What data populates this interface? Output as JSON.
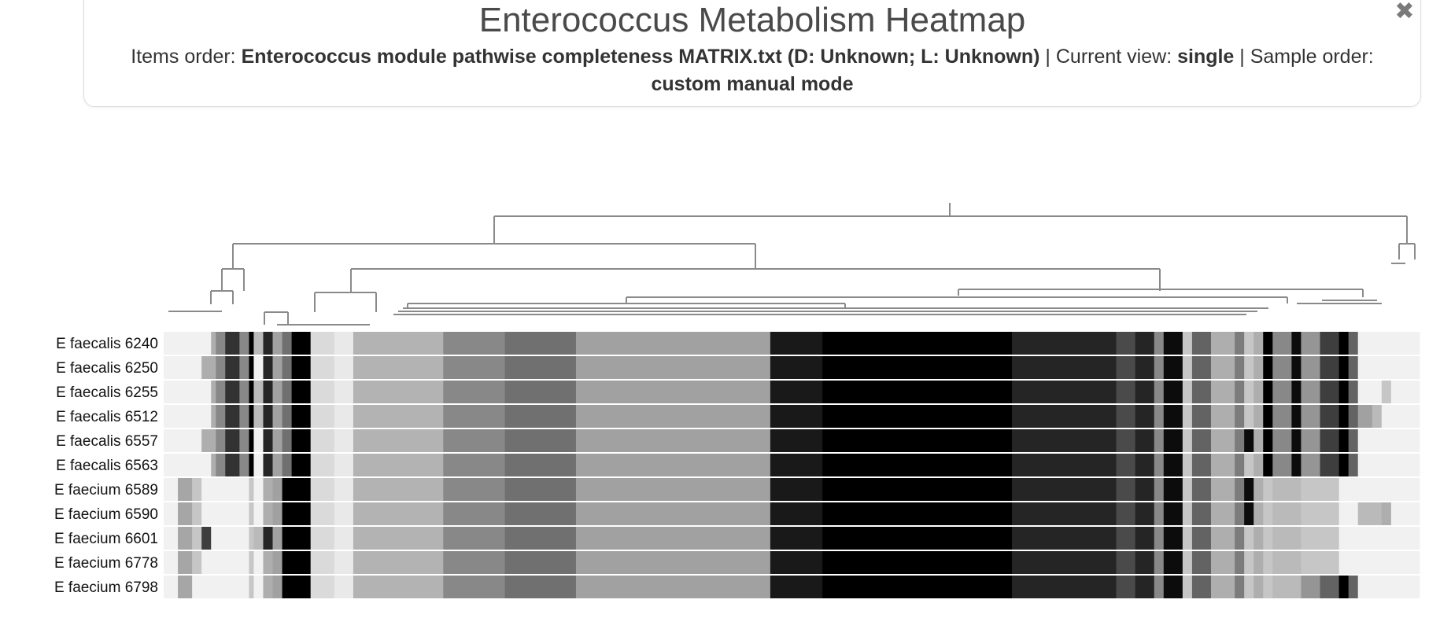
{
  "panel": {
    "title": "Enterococcus Metabolism Heatmap",
    "items_order_label": "Items order: ",
    "items_order_value": "Enterococcus module pathwise completeness MATRIX.txt (D: Unknown; L: Unknown)",
    "sep1": " | Current view: ",
    "current_view_value": "single",
    "sep2": " | Sample order: ",
    "sample_order_value": "custom manual mode",
    "close_icon": "close-icon",
    "close_glyph": "✖"
  },
  "chart_data": {
    "type": "heatmap",
    "title": "Enterococcus Metabolism Heatmap",
    "value_range": [
      0,
      1
    ],
    "color_scale": [
      "#f8f8f8",
      "#000000"
    ],
    "grid": false,
    "dendrogram": "top (items)",
    "samples": [
      "E faecalis 6240",
      "E faecalis 6250",
      "E faecalis 6255",
      "E faecalis 6512",
      "E faecalis 6557",
      "E faecalis 6563",
      "E faecium 6589",
      "E faecium 6590",
      "E faecium 6601",
      "E faecium 6778",
      "E faecium 6798"
    ],
    "column_segments": [
      {
        "count": 15,
        "values": [
          0.03,
          0.03,
          0.03,
          0.03,
          0.03,
          0.03,
          0.03,
          0.03,
          0.03,
          0.03,
          0.03
        ]
      },
      {
        "count": 15,
        "values": [
          0.03,
          0.03,
          0.03,
          0.03,
          0.03,
          0.03,
          0.33,
          0.33,
          0.33,
          0.33,
          0.33
        ]
      },
      {
        "count": 10,
        "values": [
          0.03,
          0.03,
          0.03,
          0.03,
          0.03,
          0.03,
          0.2,
          0.2,
          0.2,
          0.2,
          0.03
        ]
      },
      {
        "count": 10,
        "values": [
          0.03,
          0.3,
          0.03,
          0.03,
          0.3,
          0.03,
          0.03,
          0.03,
          0.75,
          0.03,
          0.03
        ]
      },
      {
        "count": 5,
        "values": [
          0.3,
          0.3,
          0.3,
          0.3,
          0.3,
          0.3,
          0.03,
          0.03,
          0.03,
          0.03,
          0.03
        ]
      },
      {
        "count": 10,
        "values": [
          0.45,
          0.45,
          0.45,
          0.45,
          0.45,
          0.45,
          0.03,
          0.03,
          0.03,
          0.03,
          0.03
        ]
      },
      {
        "count": 15,
        "values": [
          0.8,
          0.8,
          0.8,
          0.8,
          0.8,
          0.8,
          0.03,
          0.03,
          0.03,
          0.03,
          0.03
        ]
      },
      {
        "count": 10,
        "values": [
          0.45,
          0.45,
          0.45,
          0.45,
          0.45,
          0.45,
          0.03,
          0.03,
          0.03,
          0.03,
          0.03
        ]
      },
      {
        "count": 5,
        "values": [
          1.0,
          1.0,
          1.0,
          1.0,
          1.0,
          1.0,
          0.2,
          0.2,
          0.2,
          0.2,
          0.2
        ]
      },
      {
        "count": 10,
        "values": [
          0.25,
          0.03,
          0.25,
          0.25,
          0.03,
          0.03,
          0.03,
          0.03,
          0.25,
          0.03,
          0.03
        ]
      },
      {
        "count": 10,
        "values": [
          0.85,
          0.85,
          0.85,
          0.85,
          0.85,
          0.85,
          0.3,
          0.3,
          0.85,
          0.3,
          0.3
        ]
      },
      {
        "count": 10,
        "values": [
          0.35,
          0.35,
          0.35,
          0.35,
          0.35,
          0.35,
          0.35,
          0.35,
          0.35,
          0.35,
          0.35
        ]
      },
      {
        "count": 10,
        "values": [
          0.55,
          0.55,
          0.55,
          0.55,
          0.55,
          0.55,
          1.0,
          1.0,
          1.0,
          1.0,
          1.0
        ]
      },
      {
        "count": 20,
        "values": [
          1.0,
          1.0,
          1.0,
          1.0,
          1.0,
          1.0,
          1.0,
          1.0,
          1.0,
          1.0,
          1.0
        ]
      },
      {
        "count": 25,
        "values": [
          0.12,
          0.12,
          0.12,
          0.12,
          0.12,
          0.12,
          0.12,
          0.12,
          0.12,
          0.12,
          0.12
        ]
      },
      {
        "count": 20,
        "values": [
          0.06,
          0.06,
          0.06,
          0.06,
          0.06,
          0.06,
          0.06,
          0.06,
          0.06,
          0.06,
          0.06
        ]
      },
      {
        "count": 95,
        "values": [
          0.28,
          0.28,
          0.28,
          0.28,
          0.28,
          0.28,
          0.28,
          0.28,
          0.28,
          0.28,
          0.28
        ]
      },
      {
        "count": 65,
        "values": [
          0.45,
          0.45,
          0.45,
          0.45,
          0.45,
          0.45,
          0.45,
          0.45,
          0.45,
          0.45,
          0.45
        ]
      },
      {
        "count": 75,
        "values": [
          0.55,
          0.55,
          0.55,
          0.55,
          0.55,
          0.55,
          0.55,
          0.55,
          0.55,
          0.55,
          0.55
        ]
      },
      {
        "count": 205,
        "values": [
          0.35,
          0.35,
          0.35,
          0.35,
          0.35,
          0.35,
          0.35,
          0.35,
          0.35,
          0.35,
          0.35
        ]
      },
      {
        "count": 55,
        "values": [
          0.9,
          0.9,
          0.9,
          0.9,
          0.9,
          0.9,
          0.9,
          0.9,
          0.9,
          0.9,
          0.9
        ]
      },
      {
        "count": 200,
        "values": [
          1.0,
          1.0,
          1.0,
          1.0,
          1.0,
          1.0,
          1.0,
          1.0,
          1.0,
          1.0,
          1.0
        ]
      },
      {
        "count": 110,
        "values": [
          0.85,
          0.85,
          0.85,
          0.85,
          0.85,
          0.85,
          0.85,
          0.85,
          0.85,
          0.85,
          0.85
        ]
      },
      {
        "count": 20,
        "values": [
          0.7,
          0.7,
          0.7,
          0.7,
          0.7,
          0.7,
          0.7,
          0.7,
          0.7,
          0.7,
          0.7
        ]
      },
      {
        "count": 20,
        "values": [
          0.85,
          0.85,
          0.85,
          0.85,
          0.85,
          0.85,
          0.85,
          0.85,
          0.85,
          0.85,
          0.85
        ]
      },
      {
        "count": 10,
        "values": [
          0.45,
          0.45,
          0.45,
          0.45,
          0.45,
          0.45,
          0.45,
          0.45,
          0.45,
          0.45,
          0.45
        ]
      },
      {
        "count": 20,
        "values": [
          0.95,
          0.95,
          0.95,
          0.95,
          0.95,
          0.95,
          0.95,
          0.95,
          0.95,
          0.95,
          0.95
        ]
      },
      {
        "count": 10,
        "values": [
          0.2,
          0.2,
          0.2,
          0.2,
          0.2,
          0.2,
          0.2,
          0.2,
          0.2,
          0.2,
          0.2
        ]
      },
      {
        "count": 20,
        "values": [
          0.6,
          0.6,
          0.6,
          0.6,
          0.6,
          0.6,
          0.6,
          0.6,
          0.6,
          0.6,
          0.6
        ]
      },
      {
        "count": 25,
        "values": [
          0.3,
          0.3,
          0.3,
          0.3,
          0.3,
          0.3,
          0.3,
          0.3,
          0.3,
          0.3,
          0.3
        ]
      },
      {
        "count": 10,
        "values": [
          0.5,
          0.5,
          0.5,
          0.5,
          0.5,
          0.5,
          0.5,
          0.5,
          0.5,
          0.5,
          0.5
        ]
      },
      {
        "count": 10,
        "values": [
          0.2,
          0.2,
          0.2,
          0.2,
          0.95,
          0.2,
          0.95,
          0.95,
          0.2,
          0.2,
          0.2
        ]
      },
      {
        "count": 10,
        "values": [
          0.3,
          0.3,
          0.3,
          0.3,
          0.3,
          0.3,
          0.3,
          0.3,
          0.3,
          0.3,
          0.3
        ]
      },
      {
        "count": 10,
        "values": [
          1.0,
          1.0,
          1.0,
          1.0,
          1.0,
          1.0,
          0.2,
          0.2,
          0.2,
          0.2,
          0.2
        ]
      },
      {
        "count": 20,
        "values": [
          0.45,
          0.45,
          0.45,
          0.45,
          0.45,
          0.45,
          0.25,
          0.25,
          0.25,
          0.25,
          0.25
        ]
      },
      {
        "count": 10,
        "values": [
          0.95,
          0.95,
          0.95,
          0.95,
          0.95,
          0.95,
          0.25,
          0.25,
          0.25,
          0.25,
          0.25
        ]
      },
      {
        "count": 20,
        "values": [
          0.4,
          0.4,
          0.4,
          0.4,
          0.4,
          0.4,
          0.2,
          0.2,
          0.2,
          0.2,
          0.4
        ]
      },
      {
        "count": 20,
        "values": [
          0.75,
          0.75,
          0.75,
          0.75,
          0.75,
          0.75,
          0.2,
          0.2,
          0.2,
          0.2,
          0.6
        ]
      },
      {
        "count": 10,
        "values": [
          1.0,
          1.0,
          1.0,
          1.0,
          1.0,
          1.0,
          0.03,
          0.03,
          0.03,
          0.03,
          1.0
        ]
      },
      {
        "count": 10,
        "values": [
          0.6,
          0.6,
          0.6,
          0.6,
          0.6,
          0.6,
          0.03,
          0.03,
          0.03,
          0.03,
          0.6
        ]
      },
      {
        "count": 15,
        "values": [
          0.03,
          0.03,
          0.03,
          0.35,
          0.03,
          0.03,
          0.03,
          0.25,
          0.03,
          0.03,
          0.03
        ]
      },
      {
        "count": 10,
        "values": [
          0.03,
          0.03,
          0.03,
          0.25,
          0.03,
          0.03,
          0.03,
          0.25,
          0.03,
          0.03,
          0.03
        ]
      },
      {
        "count": 10,
        "values": [
          0.03,
          0.03,
          0.2,
          0.03,
          0.03,
          0.03,
          0.03,
          0.3,
          0.03,
          0.03,
          0.03
        ]
      },
      {
        "count": 30,
        "values": [
          0.03,
          0.03,
          0.03,
          0.03,
          0.03,
          0.03,
          0.03,
          0.03,
          0.03,
          0.03,
          0.03
        ]
      }
    ]
  }
}
